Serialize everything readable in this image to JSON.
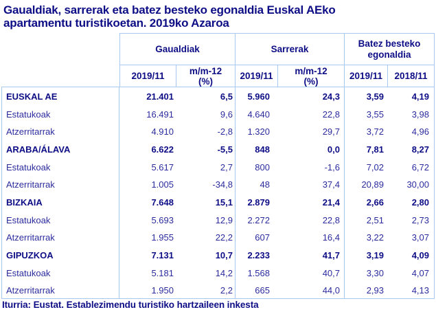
{
  "title": "Gaualdiak, sarrerak eta batez besteko egonaldia Euskal AEko\napartamentu turistikoetan. 2019ko Azaroa",
  "footer": "Iturria: Eustat. Establezimendu turistiko hartzaileen inkesta",
  "colors": {
    "text": "#2b2b9e",
    "text_strong": "#0d0d86",
    "border": "#a8c8f0",
    "background": "#ffffff"
  },
  "table": {
    "header": {
      "groups": [
        "Gaualdiak",
        "Sarrerak",
        "Batez besteko\negonaldia"
      ],
      "cols": [
        "2019/11",
        "m/m-12\n(%)",
        "2019/11",
        "m/m-12\n(%)",
        "2019/11",
        "2018/11"
      ]
    },
    "rows": [
      {
        "label": "EUSKAL AE",
        "values": [
          "21.401",
          "6,5",
          "5.960",
          "24,3",
          "3,59",
          "4,19"
        ]
      },
      {
        "label": "Estatukoak",
        "values": [
          "16.491",
          "9,6",
          "4.640",
          "22,8",
          "3,55",
          "3,98"
        ]
      },
      {
        "label": "Atzerritarrak",
        "values": [
          "4.910",
          "-2,8",
          "1.320",
          "29,7",
          "3,72",
          "4,96"
        ]
      },
      {
        "label": "ARABA/ÁLAVA",
        "values": [
          "6.622",
          "-5,5",
          "848",
          "0,0",
          "7,81",
          "8,27"
        ]
      },
      {
        "label": "Estatukoak",
        "values": [
          "5.617",
          "2,7",
          "800",
          "-1,6",
          "7,02",
          "6,72"
        ]
      },
      {
        "label": "Atzerritarrak",
        "values": [
          "1.005",
          "-34,8",
          "48",
          "37,4",
          "20,89",
          "30,00"
        ]
      },
      {
        "label": "BIZKAIA",
        "values": [
          "7.648",
          "15,1",
          "2.879",
          "21,4",
          "2,66",
          "2,80"
        ]
      },
      {
        "label": "Estatukoak",
        "values": [
          "5.693",
          "12,9",
          "2.272",
          "22,8",
          "2,51",
          "2,73"
        ]
      },
      {
        "label": "Atzerritarrak",
        "values": [
          "1.955",
          "22,2",
          "607",
          "16,4",
          "3,22",
          "3,07"
        ]
      },
      {
        "label": "GIPUZKOA",
        "values": [
          "7.131",
          "10,7",
          "2.233",
          "41,7",
          "3,19",
          "4,09"
        ]
      },
      {
        "label": "Estatukoak",
        "values": [
          "5.181",
          "14,2",
          "1.568",
          "40,7",
          "3,30",
          "4,07"
        ]
      },
      {
        "label": "Atzerritarrak",
        "values": [
          "1.950",
          "2,2",
          "665",
          "44,0",
          "2,93",
          "4,13"
        ]
      }
    ]
  },
  "chart_data": {
    "type": "table",
    "title": "Gaualdiak, sarrerak eta batez besteko egonaldia Euskal AEko apartamentu turistikoetan. 2019ko Azaroa",
    "column_groups": [
      "Gaualdiak",
      "Sarrerak",
      "Batez besteko egonaldia"
    ],
    "columns": [
      "Gaualdiak 2019/11",
      "Gaualdiak m/m-12 (%)",
      "Sarrerak 2019/11",
      "Sarrerak m/m-12 (%)",
      "Batez besteko egonaldia 2019/11",
      "Batez besteko egonaldia 2018/11"
    ],
    "rows": [
      {
        "label": "EUSKAL AE",
        "values": [
          21401,
          6.5,
          5960,
          24.3,
          3.59,
          4.19
        ]
      },
      {
        "label": "Estatukoak",
        "values": [
          16491,
          9.6,
          4640,
          22.8,
          3.55,
          3.98
        ]
      },
      {
        "label": "Atzerritarrak",
        "values": [
          4910,
          -2.8,
          1320,
          29.7,
          3.72,
          4.96
        ]
      },
      {
        "label": "ARABA/ÁLAVA",
        "values": [
          6622,
          -5.5,
          848,
          0.0,
          7.81,
          8.27
        ]
      },
      {
        "label": "Estatukoak",
        "values": [
          5617,
          2.7,
          800,
          -1.6,
          7.02,
          6.72
        ]
      },
      {
        "label": "Atzerritarrak",
        "values": [
          1005,
          -34.8,
          48,
          37.4,
          20.89,
          30.0
        ]
      },
      {
        "label": "BIZKAIA",
        "values": [
          7648,
          15.1,
          2879,
          21.4,
          2.66,
          2.8
        ]
      },
      {
        "label": "Estatukoak",
        "values": [
          5693,
          12.9,
          2272,
          22.8,
          2.51,
          2.73
        ]
      },
      {
        "label": "Atzerritarrak",
        "values": [
          1955,
          22.2,
          607,
          16.4,
          3.22,
          3.07
        ]
      },
      {
        "label": "GIPUZKOA",
        "values": [
          7131,
          10.7,
          2233,
          41.7,
          3.19,
          4.09
        ]
      },
      {
        "label": "Estatukoak",
        "values": [
          5181,
          14.2,
          1568,
          40.7,
          3.3,
          4.07
        ]
      },
      {
        "label": "Atzerritarrak",
        "values": [
          1950,
          2.2,
          665,
          44.0,
          2.93,
          4.13
        ]
      }
    ],
    "source": "Iturria: Eustat. Establezimendu turistiko hartzaileen inkesta"
  }
}
